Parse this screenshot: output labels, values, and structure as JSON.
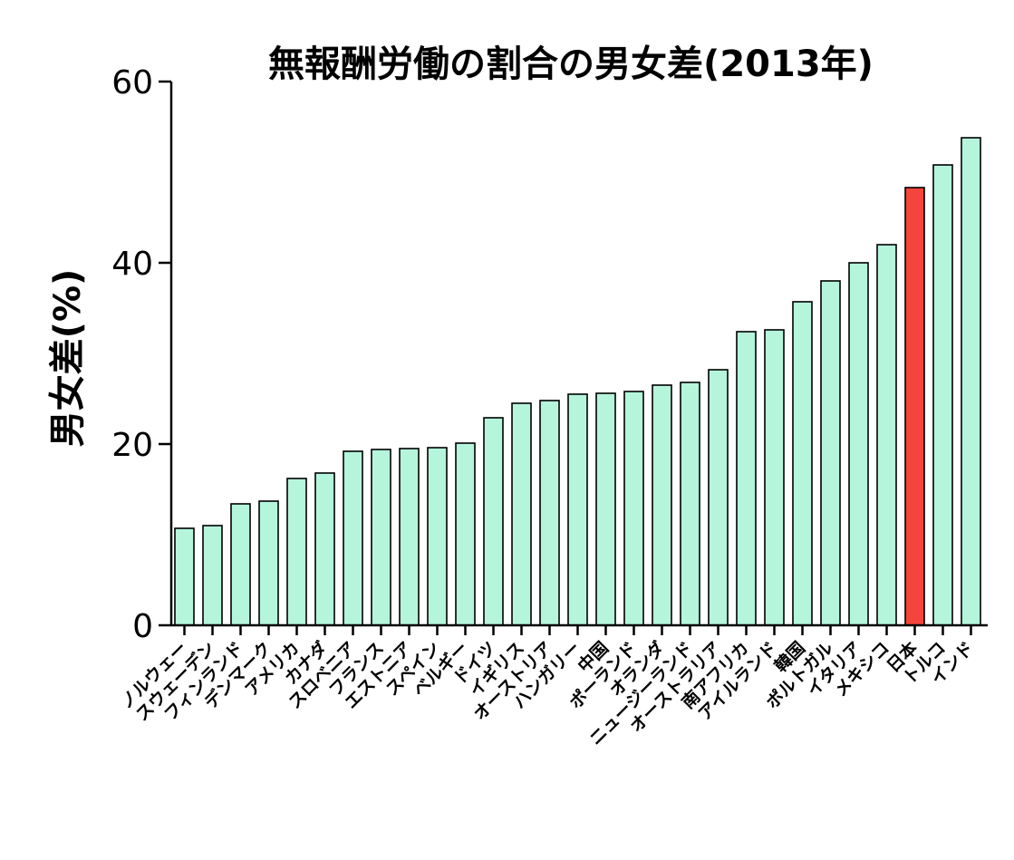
{
  "chart_data": {
    "type": "bar",
    "title": "無報酬労働の割合の男女差(2013年)",
    "xlabel": "",
    "ylabel": "男女差(%)",
    "ylim": [
      0,
      60
    ],
    "yticks": [
      0,
      20,
      40,
      60
    ],
    "grid": false,
    "legend": "none",
    "bar_color": "#b5f5dc",
    "highlight_color": "#f5443b",
    "highlight_category": "日本",
    "categories": [
      "ノルウェー",
      "スウェーデン",
      "フィンランド",
      "デンマーク",
      "アメリカ",
      "カナダ",
      "スロベニア",
      "フランス",
      "エストニア",
      "スペイン",
      "ベルギー",
      "ドイツ",
      "イギリス",
      "オーストリア",
      "ハンガリー",
      "中国",
      "ポーランド",
      "オランダ",
      "ニュージーランド",
      "オーストラリア",
      "南アフリカ",
      "アイルランド",
      "韓国",
      "ポルトガル",
      "イタリア",
      "メキシコ",
      "日本",
      "トルコ",
      "インド"
    ],
    "values": [
      10.7,
      11.0,
      13.4,
      13.7,
      16.2,
      16.8,
      19.2,
      19.4,
      19.5,
      19.6,
      20.1,
      22.9,
      24.5,
      24.8,
      25.5,
      25.6,
      25.8,
      26.5,
      26.8,
      28.2,
      32.4,
      32.6,
      35.7,
      38.0,
      40.0,
      42.0,
      48.3,
      50.8,
      53.8
    ]
  }
}
